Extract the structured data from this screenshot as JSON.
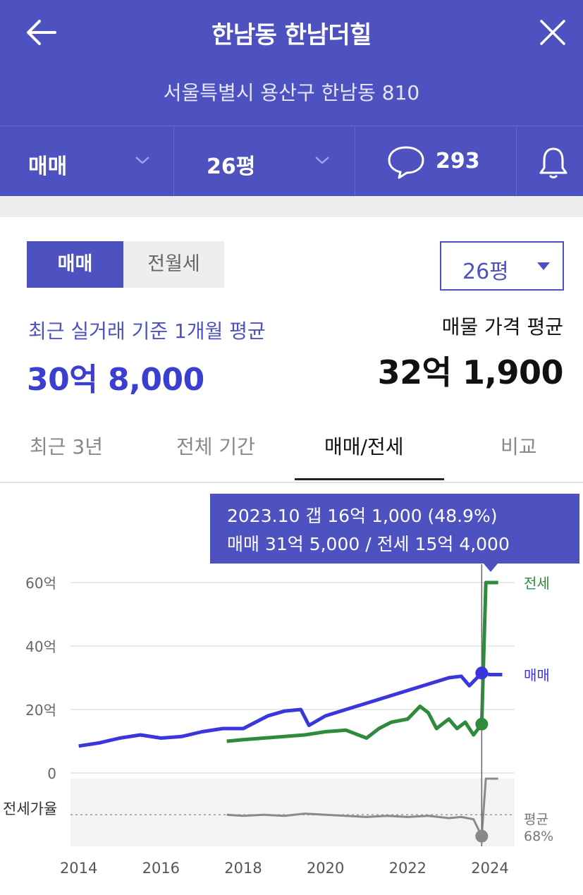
{
  "header": {
    "title": "한남동 한남더힐",
    "address": "서울특별시 용산구 한남동 810",
    "filters": {
      "trade_type": "매매",
      "size": "26평",
      "comment_count": "293"
    },
    "icons": [
      "back-arrow-icon",
      "close-icon",
      "chevron-down-icon",
      "speech-bubble-icon",
      "bell-icon"
    ]
  },
  "segment": {
    "active": "매매",
    "inactive": "전월세"
  },
  "size_dropdown": "26평",
  "summary": {
    "recent_label": "최근 실거래 기준 1개월 평균",
    "recent_value": "30억 8,000",
    "listing_label": "매물 가격 평균",
    "listing_value": "32억 1,900"
  },
  "tabs": [
    "최근 3년",
    "전체 기간",
    "매매/전세",
    "비교"
  ],
  "active_tab": 2,
  "tooltip": {
    "line1": "2023.10  갭 16억 1,000 (48.9%)",
    "line2": "매매 31억 5,000 / 전세 15억 4,000"
  },
  "colors": {
    "brand": "#4e52c0",
    "sale_line": "#3a36dd",
    "jeonse_line": "#2e8b3c",
    "ratio_line": "#8a8a8a"
  },
  "chart_data": {
    "type": "line",
    "y_tick_labels": [
      "60억",
      "40억",
      "20억",
      "0"
    ],
    "ylim": [
      0,
      60
    ],
    "xlim": [
      2013.8,
      2024.6
    ],
    "x_tick_labels": [
      "2014",
      "2016",
      "2018",
      "2020",
      "2022",
      "2024"
    ],
    "ratio_label": "전세가율",
    "ratio_avg_label_1": "평균",
    "ratio_avg_label_2": "68%",
    "ratio_avg": 68,
    "ratio_ylim": [
      40,
      100
    ],
    "selected_x": 2023.8,
    "series": [
      {
        "name": "매매",
        "x": [
          2014.0,
          2014.5,
          2015.0,
          2015.5,
          2016.0,
          2016.5,
          2017.0,
          2017.5,
          2018.0,
          2018.3,
          2018.6,
          2019.0,
          2019.4,
          2019.6,
          2020.0,
          2020.5,
          2021.0,
          2021.5,
          2022.0,
          2022.5,
          2023.0,
          2023.3,
          2023.5,
          2023.8,
          2024.0,
          2024.3
        ],
        "values": [
          8.5,
          9.5,
          11,
          12,
          11,
          11.5,
          13,
          14,
          14,
          16,
          18,
          19.5,
          20,
          15,
          18,
          20,
          22,
          24,
          26,
          28,
          30,
          30.5,
          27.5,
          31.5,
          31,
          31
        ]
      },
      {
        "name": "전세",
        "x": [
          2017.6,
          2018.0,
          2018.5,
          2019.0,
          2019.5,
          2020.0,
          2020.5,
          2021.0,
          2021.3,
          2021.6,
          2022.0,
          2022.3,
          2022.5,
          2022.7,
          2022.9,
          2023.0,
          2023.2,
          2023.4,
          2023.6,
          2023.8,
          2023.9,
          2024.2
        ],
        "values": [
          10,
          10.5,
          11,
          11.5,
          12,
          13,
          13.5,
          11,
          14,
          16,
          17,
          21,
          19,
          14,
          16,
          17,
          14,
          16,
          12,
          15.4,
          60,
          60
        ]
      },
      {
        "name": "전세가율",
        "x": [
          2017.6,
          2018.0,
          2018.5,
          2019.0,
          2019.5,
          2020.0,
          2020.5,
          2021.0,
          2021.5,
          2022.0,
          2022.5,
          2023.0,
          2023.3,
          2023.6,
          2023.8,
          2023.9,
          2024.2
        ],
        "values": [
          68,
          67,
          68,
          67,
          69,
          68,
          67,
          66,
          67,
          66,
          67,
          65,
          66,
          64,
          49,
          100,
          100
        ]
      }
    ]
  }
}
